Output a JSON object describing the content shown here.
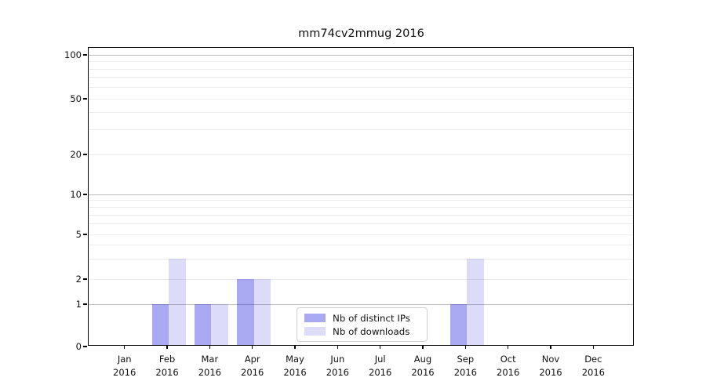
{
  "chart_data": {
    "type": "bar",
    "title": "mm74cv2mmug 2016",
    "xlabel": "",
    "ylabel": "",
    "categories": [
      "Jan",
      "Feb",
      "Mar",
      "Apr",
      "May",
      "Jun",
      "Jul",
      "Aug",
      "Sep",
      "Oct",
      "Nov",
      "Dec"
    ],
    "category_year": "2016",
    "series": [
      {
        "name": "Nb of distinct IPs",
        "color": "rgba(10,10,215,0.35)",
        "values": [
          0,
          1,
          1,
          2,
          0,
          0,
          0,
          0,
          1,
          0,
          0,
          0
        ]
      },
      {
        "name": "Nb of downloads",
        "color": "rgba(10,10,215,0.14)",
        "values": [
          0,
          3,
          1,
          2,
          0,
          0,
          0,
          0,
          3,
          0,
          0,
          0
        ]
      }
    ],
    "yscale": "symlog",
    "ylim": [
      0,
      100
    ],
    "y_tick_values": [
      0,
      1,
      2,
      5,
      10,
      20,
      50,
      100
    ],
    "y_tick_labels": [
      "0",
      "1",
      "2",
      "5",
      "10",
      "20",
      "50",
      "100"
    ],
    "major_grid_values": [
      1,
      10,
      100
    ],
    "minor_grid_values": [
      2,
      3,
      4,
      5,
      6,
      7,
      8,
      9,
      20,
      30,
      40,
      50,
      60,
      70,
      80,
      90
    ],
    "grid": true,
    "legend_position": "lower center-left",
    "colors": {
      "bar_distinct_ips": "#a9a9f1",
      "bar_downloads": "#dcdcf8",
      "major_grid": "#bdbdbd",
      "minor_grid": "#ededed",
      "spine": "#000000",
      "text": "#111111"
    }
  }
}
